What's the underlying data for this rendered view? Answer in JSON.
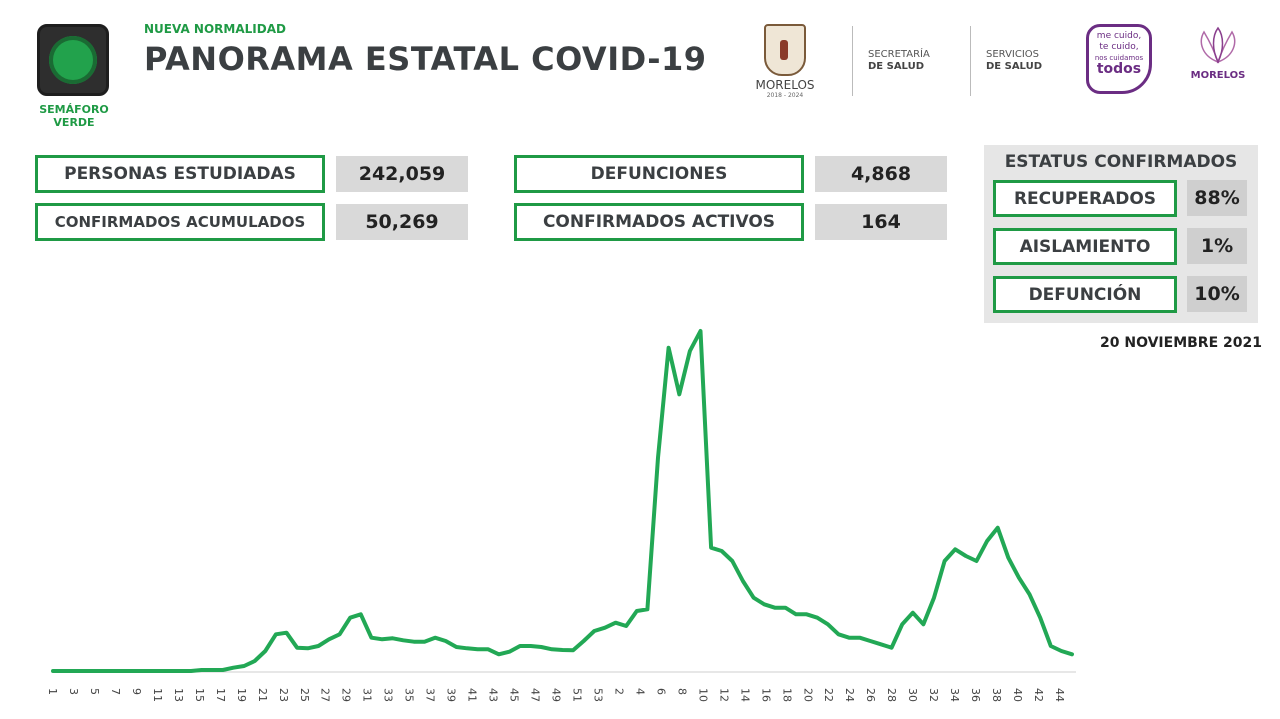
{
  "header": {
    "semaforo_label": "SEMÁFORO",
    "semaforo_level": "VERDE",
    "kicker": "NUEVA NORMALIDAD",
    "title": "PANORAMA ESTATAL COVID-19"
  },
  "logos": {
    "morelos_name": "MORELOS",
    "morelos_years": "2018 - 2024",
    "secretaria_line1": "SECRETARÍA",
    "secretaria_line2": "DE SALUD",
    "servicios_line1": "SERVICIOS",
    "servicios_line2": "DE SALUD",
    "badge_line1": "me cuido,",
    "badge_line2": "te cuido,",
    "badge_line3": "nos cuidamos",
    "badge_line4": "todos",
    "morelos2_name": "MORELOS"
  },
  "stats": {
    "personas_estudiadas_label": "PERSONAS ESTUDIADAS",
    "personas_estudiadas_value": "242,059",
    "confirmados_acumulados_label": "CONFIRMADOS ACUMULADOS",
    "confirmados_acumulados_value": "50,269",
    "defunciones_label": "DEFUNCIONES",
    "defunciones_value": "4,868",
    "confirmados_activos_label": "CONFIRMADOS ACTIVOS",
    "confirmados_activos_value": "164"
  },
  "status": {
    "title": "ESTATUS CONFIRMADOS",
    "recuperados_label": "RECUPERADOS",
    "recuperados_value": "88%",
    "aislamiento_label": "AISLAMIENTO",
    "aislamiento_value": "1%",
    "defuncion_label": "DEFUNCIÓN",
    "defuncion_value": "10%"
  },
  "date": "20 NOVIEMBRE 2021",
  "colors": {
    "accent_green": "#1f9a45",
    "line_green": "#22a855",
    "text_dark": "#3b3f42",
    "value_bg": "#d9d9d9"
  },
  "chart_data": {
    "type": "line",
    "title": "",
    "xlabel": "",
    "ylabel": "",
    "grid": false,
    "legend": "none",
    "x_tick_labels": [
      "1",
      "3",
      "5",
      "7",
      "9",
      "11",
      "13",
      "15",
      "17",
      "19",
      "21",
      "23",
      "25",
      "27",
      "29",
      "31",
      "33",
      "35",
      "37",
      "39",
      "41",
      "43",
      "45",
      "47",
      "49",
      "51",
      "53",
      "2",
      "4",
      "6",
      "8",
      "10",
      "12",
      "14",
      "16",
      "18",
      "20",
      "22",
      "24",
      "26",
      "28",
      "30",
      "32",
      "34",
      "36",
      "38",
      "40",
      "42",
      "44"
    ],
    "ylim": [
      0,
      100
    ],
    "values": [
      0,
      0,
      0,
      0,
      0,
      0,
      0,
      0,
      0,
      0,
      0,
      0,
      0,
      0,
      0.3,
      0.3,
      0.3,
      1,
      1.5,
      3,
      6,
      11,
      11.5,
      7,
      6.8,
      7.5,
      9.5,
      11,
      16,
      17,
      10,
      9.5,
      9.8,
      9.2,
      8.8,
      8.8,
      10,
      9,
      7.2,
      6.8,
      6.5,
      6.5,
      5,
      5.8,
      7.5,
      7.5,
      7.2,
      6.5,
      6.3,
      6.2,
      9,
      12,
      13,
      14.5,
      13.5,
      18,
      18.5,
      64,
      97,
      83,
      96,
      102,
      37,
      36,
      33,
      27,
      22,
      20,
      19,
      19,
      17,
      17,
      16,
      14,
      11,
      10,
      10,
      9,
      8,
      7,
      14,
      17.5,
      14,
      22,
      33,
      36.5,
      34.5,
      33,
      39,
      43,
      34,
      28,
      23,
      16,
      7.5,
      6,
      5
    ]
  }
}
